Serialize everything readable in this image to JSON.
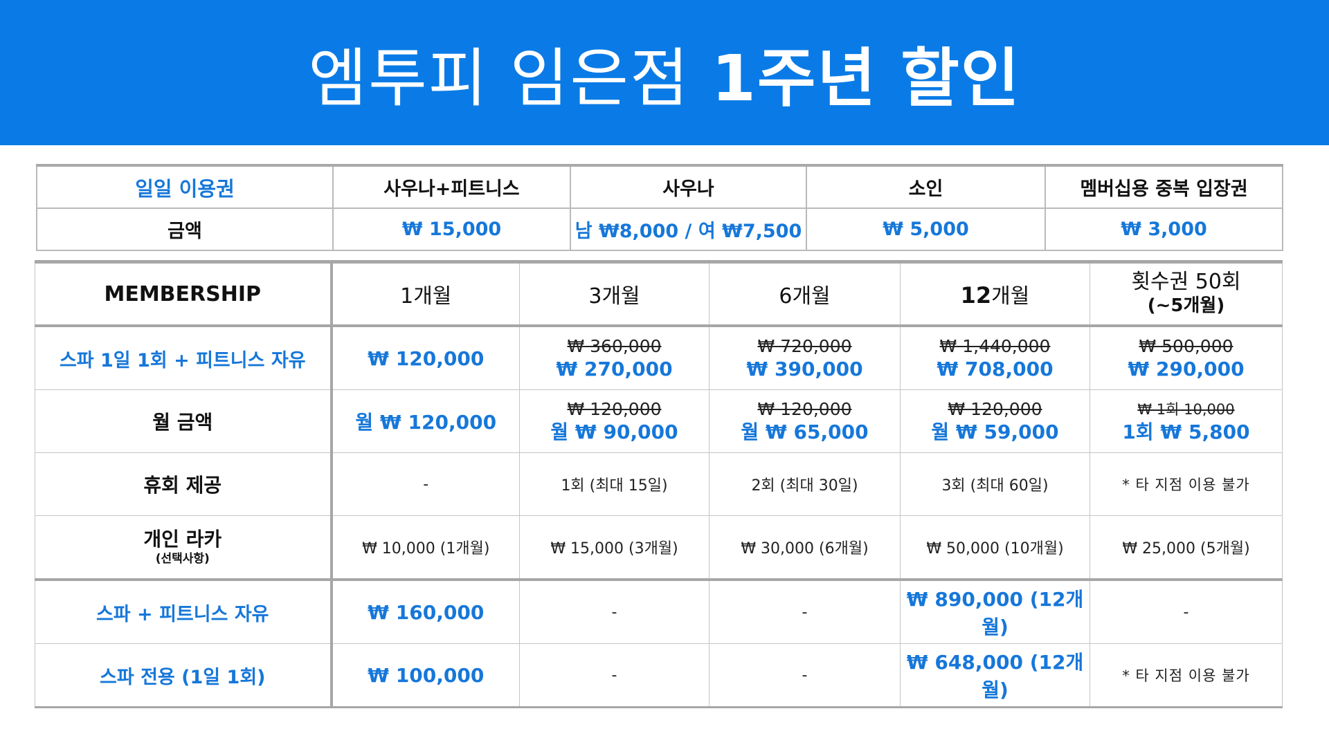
{
  "banner": {
    "title_light": "엠투피 임은점",
    "title_bold": "1주년 할인",
    "color": "#0a7be6"
  },
  "accent_color": "#1677d9",
  "daily": {
    "headers": [
      "일일 이용권",
      "사우나+피트니스",
      "사우나",
      "소인",
      "멤버십용 중복 입장권"
    ],
    "row_label": "금액",
    "prices": [
      "₩ 15,000",
      "남 ₩8,000 / 여 ₩7,500",
      "₩ 5,000",
      "₩ 3,000"
    ]
  },
  "membership": {
    "header": {
      "label": "MEMBERSHIP",
      "cols": [
        {
          "num": "1",
          "unit": "개월"
        },
        {
          "num": "3",
          "unit": "개월"
        },
        {
          "num": "6",
          "unit": "개월"
        },
        {
          "num": "12",
          "unit": "개월"
        },
        {
          "line1": "횟수권 50회",
          "line2": "(~5개월)"
        }
      ]
    },
    "spa_fitness_daily": {
      "label": "스파 1일 1회 + 피트니스 자유",
      "c1": "₩ 120,000",
      "c3_old": "₩ 360,000",
      "c3_new": "₩ 270,000",
      "c6_old": "₩ 720,000",
      "c6_new": "₩ 390,000",
      "c12_old": "₩ 1,440,000",
      "c12_new": "₩ 708,000",
      "c50_old": "₩ 500,000",
      "c50_new": "₩ 290,000"
    },
    "monthly": {
      "label": "월 금액",
      "c1": "월 ₩ 120,000",
      "c3_old": "₩ 120,000",
      "c3_new": "월 ₩ 90,000",
      "c6_old": "₩ 120,000",
      "c6_new": "월 ₩ 65,000",
      "c12_old": "₩ 120,000",
      "c12_new": "월 ₩ 59,000",
      "c50_old": "₩ 1회 10,000",
      "c50_new": "1회 ₩ 5,800"
    },
    "pause": {
      "label": "휴회 제공",
      "values": [
        "-",
        "1회 (최대 15일)",
        "2회 (최대 30일)",
        "3회 (최대 60일)",
        "* 타 지점 이용 불가"
      ]
    },
    "locker": {
      "label": "개인 라카",
      "sublabel": "(선택사항)",
      "values": [
        "₩ 10,000 (1개월)",
        "₩ 15,000 (3개월)",
        "₩ 30,000 (6개월)",
        "₩ 50,000 (10개월)",
        "₩ 25,000 (5개월)"
      ]
    },
    "spa_fitness_free": {
      "label": "스파 + 피트니스 자유",
      "values": [
        "₩ 160,000",
        "-",
        "-",
        "₩ 890,000 (12개월)",
        "-"
      ]
    },
    "spa_only": {
      "label": "스파 전용 (1일 1회)",
      "values": [
        "₩ 100,000",
        "-",
        "-",
        "₩ 648,000 (12개월)",
        "* 타 지점 이용 불가"
      ]
    }
  }
}
